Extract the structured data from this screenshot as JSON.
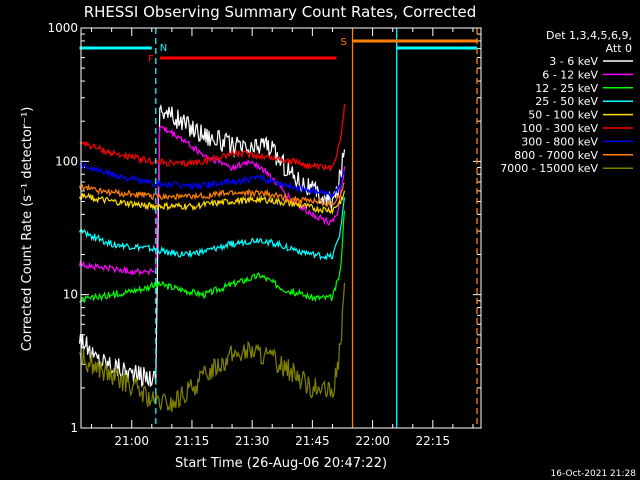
{
  "chart_data": {
    "type": "line",
    "title": "RHESSI Observing Summary Count Rates, Corrected",
    "xlabel": "Start Time (26-Aug-06 20:47:22)",
    "ylabel": "Corrected Count Rate (s⁻¹ detector⁻¹)",
    "ylog": true,
    "ylim": [
      1,
      1000
    ],
    "xlim": [
      "20:47:22",
      "22:27:00"
    ],
    "xtick_labels": [
      "21:00",
      "21:15",
      "21:30",
      "21:45",
      "22:00",
      "22:15"
    ],
    "ytick_labels": [
      "1",
      "10",
      "100",
      "1000"
    ],
    "legend": {
      "header": [
        "Det 1,3,4,5,6,9,",
        "Att 0"
      ],
      "placement": "right"
    },
    "series": [
      {
        "name": "3 - 6 keV",
        "color": "#ffffff",
        "points": [
          [
            "20:47",
            "5"
          ],
          [
            "20:50",
            "3.5"
          ],
          [
            "20:55",
            "3"
          ],
          [
            "21:01",
            "2.5"
          ],
          [
            "21:06",
            "2.4"
          ],
          [
            "21:07",
            "250"
          ],
          [
            "21:12",
            "200"
          ],
          [
            "21:18",
            "160"
          ],
          [
            "21:25",
            "130"
          ],
          [
            "21:30",
            "120"
          ],
          [
            "21:33",
            "140"
          ],
          [
            "21:36",
            "110"
          ],
          [
            "21:40",
            "80"
          ],
          [
            "21:45",
            "60"
          ],
          [
            "21:49",
            "50"
          ],
          [
            "21:51",
            "55"
          ],
          [
            "21:53",
            "120"
          ]
        ]
      },
      {
        "name": "6 - 12 keV",
        "color": "#ff00ff",
        "points": [
          [
            "20:47",
            "17"
          ],
          [
            "20:52",
            "16"
          ],
          [
            "21:00",
            "15"
          ],
          [
            "21:06",
            "15"
          ],
          [
            "21:07",
            "180"
          ],
          [
            "21:12",
            "150"
          ],
          [
            "21:18",
            "110"
          ],
          [
            "21:25",
            "90"
          ],
          [
            "21:30",
            "100"
          ],
          [
            "21:34",
            "80"
          ],
          [
            "21:40",
            "50"
          ],
          [
            "21:45",
            "40"
          ],
          [
            "21:49",
            "35"
          ],
          [
            "21:51",
            "38"
          ],
          [
            "21:53",
            "90"
          ]
        ]
      },
      {
        "name": "12 - 25 keV",
        "color": "#00ff00",
        "points": [
          [
            "20:47",
            "9"
          ],
          [
            "20:55",
            "10"
          ],
          [
            "21:02",
            "11"
          ],
          [
            "21:07",
            "12"
          ],
          [
            "21:12",
            "11"
          ],
          [
            "21:18",
            "10"
          ],
          [
            "21:25",
            "12"
          ],
          [
            "21:32",
            "14"
          ],
          [
            "21:38",
            "11"
          ],
          [
            "21:45",
            "9.5"
          ],
          [
            "21:50",
            "9.5"
          ],
          [
            "21:52",
            "15"
          ],
          [
            "21:53",
            "45"
          ]
        ]
      },
      {
        "name": "25 - 50 keV",
        "color": "#00ffff",
        "points": [
          [
            "20:47",
            "30"
          ],
          [
            "20:55",
            "24"
          ],
          [
            "21:05",
            "22"
          ],
          [
            "21:12",
            "20"
          ],
          [
            "21:18",
            "21"
          ],
          [
            "21:25",
            "24"
          ],
          [
            "21:32",
            "26"
          ],
          [
            "21:38",
            "23"
          ],
          [
            "21:45",
            "20"
          ],
          [
            "21:50",
            "19"
          ],
          [
            "21:52",
            "30"
          ],
          [
            "21:53",
            "55"
          ]
        ]
      },
      {
        "name": "50 - 100 keV",
        "color": "#ffdd00",
        "points": [
          [
            "20:47",
            "55"
          ],
          [
            "20:55",
            "50"
          ],
          [
            "21:05",
            "46"
          ],
          [
            "21:15",
            "46"
          ],
          [
            "21:25",
            "50"
          ],
          [
            "21:32",
            "52"
          ],
          [
            "21:40",
            "48"
          ],
          [
            "21:46",
            "44"
          ],
          [
            "21:50",
            "43"
          ],
          [
            "21:52",
            "50"
          ],
          [
            "21:53",
            "60"
          ]
        ]
      },
      {
        "name": "100 - 300 keV",
        "color": "#ff0000",
        "points": [
          [
            "20:47",
            "140"
          ],
          [
            "20:55",
            "115"
          ],
          [
            "21:05",
            "100"
          ],
          [
            "21:12",
            "95"
          ],
          [
            "21:18",
            "100"
          ],
          [
            "21:25",
            "115"
          ],
          [
            "21:32",
            "110"
          ],
          [
            "21:40",
            "100"
          ],
          [
            "21:46",
            "90"
          ],
          [
            "21:50",
            "88"
          ],
          [
            "21:52",
            "150"
          ],
          [
            "21:53",
            "260"
          ]
        ]
      },
      {
        "name": "300 - 800 keV",
        "color": "#0000ff",
        "points": [
          [
            "20:47",
            "95"
          ],
          [
            "20:55",
            "80"
          ],
          [
            "21:05",
            "68"
          ],
          [
            "21:15",
            "65"
          ],
          [
            "21:25",
            "70"
          ],
          [
            "21:32",
            "75"
          ],
          [
            "21:40",
            "65"
          ],
          [
            "21:46",
            "60"
          ],
          [
            "21:50",
            "55"
          ],
          [
            "21:52",
            "65"
          ],
          [
            "21:53",
            "85"
          ]
        ]
      },
      {
        "name": "800 - 7000 keV",
        "color": "#ff8000",
        "points": [
          [
            "20:47",
            "65"
          ],
          [
            "20:55",
            "58"
          ],
          [
            "21:05",
            "55"
          ],
          [
            "21:15",
            "54"
          ],
          [
            "21:25",
            "58"
          ],
          [
            "21:32",
            "58"
          ],
          [
            "21:40",
            "52"
          ],
          [
            "21:46",
            "50"
          ],
          [
            "21:50",
            "48"
          ],
          [
            "21:52",
            "55"
          ],
          [
            "21:53",
            "70"
          ]
        ]
      },
      {
        "name": "7000 - 15000 keV",
        "color": "#808000",
        "points": [
          [
            "20:47",
            "3.5"
          ],
          [
            "20:55",
            "2.4"
          ],
          [
            "21:00",
            "2.1"
          ],
          [
            "21:05",
            "1.6"
          ],
          [
            "21:10",
            "1.5"
          ],
          [
            "21:15",
            "2.0"
          ],
          [
            "21:20",
            "2.8"
          ],
          [
            "21:25",
            "3.5"
          ],
          [
            "21:30",
            "3.8"
          ],
          [
            "21:35",
            "3.3"
          ],
          [
            "21:40",
            "2.6"
          ],
          [
            "21:45",
            "2.0"
          ],
          [
            "21:50",
            "1.8"
          ],
          [
            "21:52",
            "4"
          ],
          [
            "21:53",
            "12"
          ]
        ]
      }
    ],
    "annotations": [
      {
        "label": "N",
        "color": "#00ffff",
        "time_start": "21:06",
        "time_end": "21:06"
      },
      {
        "label": "F",
        "color": "#ff0000",
        "time_start": "21:07",
        "time_end": "21:51"
      },
      {
        "label": "S",
        "color": "#ff8000",
        "time_start": "21:55",
        "time_end": "22:26"
      }
    ],
    "night_bars": [
      {
        "color": "#00ffff",
        "time_start": "20:47",
        "time_end": "21:05"
      },
      {
        "color": "#00ffff",
        "time_start": "22:06",
        "time_end": "22:26"
      }
    ],
    "vlines": [
      {
        "color": "#00ffff",
        "time": "21:06",
        "style": "dashed"
      },
      {
        "color": "#ff8000",
        "time": "21:55",
        "style": "solid"
      },
      {
        "color": "#00ffff",
        "time": "22:06",
        "style": "solid"
      },
      {
        "color": "#ff8000",
        "time": "22:26",
        "style": "dashed"
      }
    ]
  },
  "footer_date": "16-Oct-2021 21:28"
}
